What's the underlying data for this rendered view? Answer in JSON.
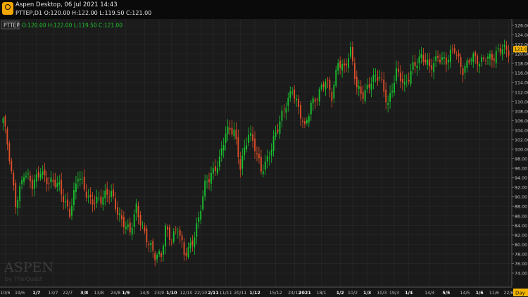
{
  "window": {
    "title": "Aspen Desktop, 06 Jul 2021 14:43",
    "subtitle": "PTTEP,D1  O:120.00 H:122.00 L:119.50 C:121.00"
  },
  "panel": {
    "symbol": "PTTEP",
    "ohlc": "O:120.00 H:122.00 L:119.50 C:121.00",
    "timeframe": "Day",
    "last_price": "121.00",
    "watermark_main": "ASPEN",
    "watermark_sub": "by ThaiQuest"
  },
  "colors": {
    "up": "#19c22f",
    "down": "#e0502a",
    "ohlc_text": "#1fc32f",
    "price_marker": "#f5b400",
    "axis_text": "#c8c8c8",
    "grid": "#2a2a2a"
  },
  "chart_data": {
    "type": "candlestick",
    "y_axis": {
      "min": 74.0,
      "max": 126.0,
      "step": 2,
      "labels": [
        "126.00",
        "124.00",
        "122.00",
        "120.00",
        "118.00",
        "116.00",
        "114.00",
        "112.00",
        "110.00",
        "108.00",
        "106.00",
        "104.00",
        "102.00",
        "100.00",
        "98.00",
        "96.00",
        "94.00",
        "92.00",
        "90.00",
        "88.00",
        "86.00",
        "84.00",
        "82.00",
        "80.00",
        "78.00",
        "76.00",
        "74.00"
      ]
    },
    "x_axis": {
      "labels": [
        "10/6",
        "19/6",
        "1/7",
        "13/7",
        "22/7",
        "3/8",
        "13/8",
        "24/8",
        "1/9",
        "14/9",
        "23/9",
        "1/10",
        "12/10",
        "22/10",
        "2/11",
        "11/11",
        "20/11",
        "1/12",
        "15/12",
        "24/12",
        "2021",
        "18/1",
        "1/2",
        "10/2",
        "1/3",
        "10/3",
        "19/3",
        "1/4",
        "14/4",
        "5/5",
        "14/5",
        "1/6",
        "11/6",
        "22/6"
      ],
      "bold": [
        "1/7",
        "3/8",
        "1/9",
        "1/10",
        "2/11",
        "1/12",
        "2021",
        "1/2",
        "1/3",
        "1/4",
        "5/5",
        "1/6"
      ],
      "label_index": [
        1,
        8,
        16,
        24,
        31,
        39,
        46,
        54,
        59,
        68,
        75,
        81,
        88,
        95,
        101,
        107,
        114,
        121,
        131,
        140,
        145,
        153,
        162,
        168,
        175,
        182,
        188,
        195,
        205,
        213,
        222,
        229,
        236,
        243
      ]
    },
    "close_anchors": [
      [
        0,
        106
      ],
      [
        3,
        98
      ],
      [
        6,
        89
      ],
      [
        10,
        95
      ],
      [
        14,
        92
      ],
      [
        18,
        96
      ],
      [
        22,
        93
      ],
      [
        27,
        92
      ],
      [
        32,
        87
      ],
      [
        36,
        94
      ],
      [
        41,
        90
      ],
      [
        47,
        89
      ],
      [
        52,
        91
      ],
      [
        57,
        85
      ],
      [
        61,
        82
      ],
      [
        64,
        88
      ],
      [
        67,
        84
      ],
      [
        70,
        80
      ],
      [
        73,
        77
      ],
      [
        76,
        78
      ],
      [
        78,
        84
      ],
      [
        81,
        81
      ],
      [
        84,
        83
      ],
      [
        87,
        78
      ],
      [
        91,
        81
      ],
      [
        94,
        85
      ],
      [
        97,
        92
      ],
      [
        100,
        95
      ],
      [
        104,
        98
      ],
      [
        107,
        103
      ],
      [
        111,
        104
      ],
      [
        114,
        97
      ],
      [
        118,
        103
      ],
      [
        121,
        100
      ],
      [
        124,
        96
      ],
      [
        128,
        99
      ],
      [
        132,
        104
      ],
      [
        136,
        110
      ],
      [
        139,
        113
      ],
      [
        142,
        108
      ],
      [
        145,
        104
      ],
      [
        148,
        110
      ],
      [
        152,
        112
      ],
      [
        155,
        114
      ],
      [
        158,
        111
      ],
      [
        161,
        119
      ],
      [
        164,
        117
      ],
      [
        167,
        120
      ],
      [
        170,
        113
      ],
      [
        173,
        112
      ],
      [
        177,
        114
      ],
      [
        181,
        115
      ],
      [
        185,
        110
      ],
      [
        189,
        116
      ],
      [
        193,
        113
      ],
      [
        197,
        118
      ],
      [
        201,
        119
      ],
      [
        205,
        117
      ],
      [
        209,
        120
      ],
      [
        213,
        118
      ],
      [
        217,
        121
      ],
      [
        221,
        117
      ],
      [
        225,
        119
      ],
      [
        229,
        118
      ],
      [
        232,
        120
      ],
      [
        236,
        119
      ],
      [
        240,
        121
      ],
      [
        243,
        121
      ]
    ]
  }
}
